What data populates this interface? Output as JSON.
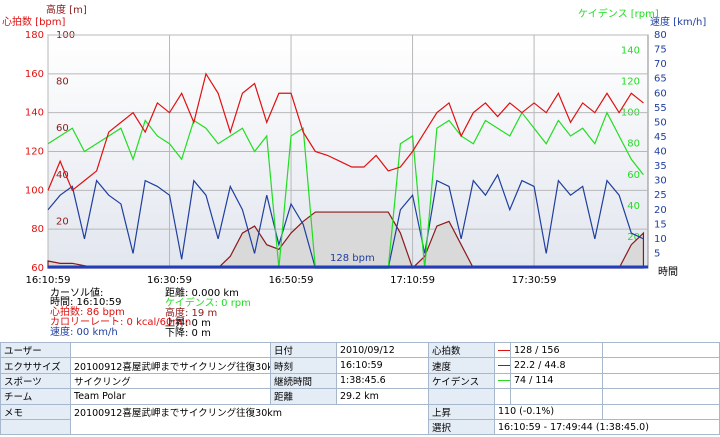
{
  "chart_data": {
    "type": "line",
    "x": [
      0,
      2,
      4,
      6,
      8,
      10,
      12,
      14,
      16,
      18,
      20,
      22,
      24,
      26,
      28,
      30,
      32,
      34,
      36,
      38,
      40,
      42,
      44,
      46,
      48,
      50,
      52,
      54,
      56,
      58,
      60,
      62,
      64,
      66,
      68,
      70,
      72,
      74,
      76,
      78,
      80,
      82,
      84,
      86,
      88,
      90,
      92,
      94,
      96,
      98
    ],
    "xlim": [
      0,
      98.75
    ],
    "xticks": [
      {
        "value": 0,
        "label": "16:10:59"
      },
      {
        "value": 20,
        "label": "16:30:59"
      },
      {
        "value": 40,
        "label": "16:50:59"
      },
      {
        "value": 60,
        "label": "17:10:59"
      },
      {
        "value": 80,
        "label": "17:30:59"
      }
    ],
    "xlabel": "時間",
    "grid": true,
    "series": [
      {
        "name": "高度 [m]",
        "type": "area",
        "color": "#8b1a1a",
        "ylim": [
          0,
          100
        ],
        "yticks": [
          20,
          40,
          60,
          80,
          100
        ],
        "values": [
          3,
          2,
          2,
          1,
          0,
          0,
          0,
          0,
          0,
          0,
          0,
          0,
          0,
          0,
          0,
          5,
          15,
          18,
          10,
          8,
          15,
          20,
          24,
          24,
          24,
          24,
          24,
          24,
          24,
          15,
          0,
          5,
          18,
          20,
          10,
          0,
          0,
          0,
          0,
          0,
          0,
          0,
          0,
          0,
          0,
          0,
          0,
          0,
          10,
          15
        ]
      },
      {
        "name": "速度 [km/h]",
        "color": "#1f3f9f",
        "ylim": [
          0,
          80
        ],
        "yticks": [
          5,
          10,
          15,
          20,
          25,
          30,
          35,
          40,
          45,
          50,
          55,
          60,
          65,
          70,
          75,
          80
        ],
        "values": [
          20,
          25,
          28,
          10,
          30,
          25,
          22,
          5,
          30,
          28,
          25,
          3,
          30,
          25,
          10,
          28,
          20,
          5,
          25,
          8,
          22,
          15,
          0,
          0,
          0,
          0,
          0,
          0,
          0,
          20,
          25,
          5,
          30,
          28,
          10,
          30,
          25,
          32,
          20,
          30,
          28,
          5,
          30,
          25,
          28,
          10,
          30,
          25,
          12,
          10
        ]
      },
      {
        "name": "ケイデンス [rpm]",
        "color": "#22dd22",
        "ylim": [
          0,
          150
        ],
        "yticks": [
          20,
          40,
          60,
          80,
          100,
          120,
          140
        ],
        "values": [
          80,
          85,
          90,
          75,
          80,
          85,
          90,
          70,
          95,
          85,
          80,
          70,
          95,
          90,
          80,
          85,
          90,
          75,
          85,
          0,
          85,
          90,
          0,
          0,
          0,
          0,
          0,
          0,
          0,
          80,
          85,
          0,
          90,
          95,
          85,
          80,
          95,
          90,
          85,
          100,
          90,
          80,
          95,
          85,
          90,
          80,
          100,
          85,
          70,
          60
        ]
      },
      {
        "name": "心拍数 [bpm]",
        "color": "#e01010",
        "ylim": [
          60,
          180
        ],
        "yticks": [
          60,
          80,
          100,
          120,
          140,
          160,
          180
        ],
        "values": [
          100,
          115,
          100,
          105,
          110,
          130,
          135,
          140,
          130,
          145,
          140,
          150,
          135,
          160,
          150,
          130,
          150,
          155,
          135,
          150,
          150,
          130,
          120,
          118,
          115,
          112,
          112,
          118,
          110,
          112,
          120,
          130,
          140,
          145,
          128,
          140,
          145,
          138,
          145,
          140,
          145,
          140,
          150,
          135,
          145,
          140,
          150,
          140,
          150,
          145
        ]
      }
    ],
    "annotation": "128 bpm"
  },
  "cursor": {
    "title": "カーソル値:",
    "left": [
      "時間: 16:10:59",
      "心拍数: 86 bpm",
      "カロリーレート: 0 kcal/60min",
      "速度: 00 km/h"
    ],
    "right": [
      "距離: 0.000 km",
      "ケイデンス: 0 rpm",
      "高度: 19 m",
      "上昇: 0 m",
      "下降: 0 m"
    ]
  },
  "table": {
    "rows": [
      [
        "ユーザー",
        "日付",
        "2010/09/12",
        "心拍数",
        "128 / 156"
      ],
      [
        "エクササイズ",
        "20100912喜屋武岬までサイクリング往復30k",
        "時刻",
        "16:10:59",
        "速度",
        "22.2 / 44.8"
      ],
      [
        "スポーツ",
        "サイクリング",
        "継続時間",
        "1:38:45.6",
        "ケイデンス",
        "74 / 114"
      ],
      [
        "チーム",
        "Team Polar",
        "距離",
        "29.2 km"
      ],
      [
        "メモ",
        "20100912喜屋武岬までサイクリング往復30km",
        "上昇",
        "110 (-0.1%)"
      ],
      [
        "選択",
        "16:10:59 - 17:49:44 (1:38:45.0)"
      ]
    ]
  }
}
